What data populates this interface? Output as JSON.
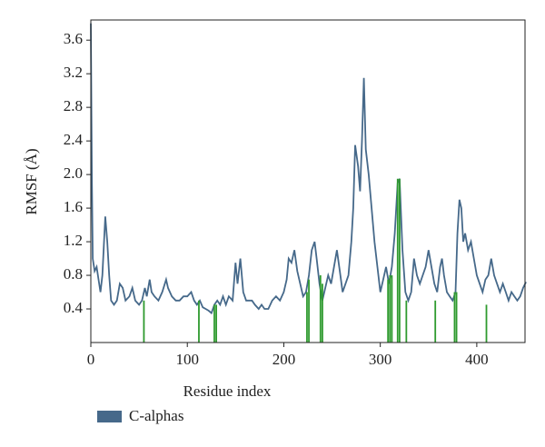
{
  "chart_data": {
    "type": "line",
    "xlabel": "Residue index",
    "ylabel": "RMSF (Å)",
    "xlim": [
      0,
      450
    ],
    "ylim": [
      0,
      3.84
    ],
    "xticks": [
      0,
      100,
      200,
      300,
      400
    ],
    "yticks": [
      0.4,
      0.8,
      1.2,
      1.6,
      {
        "value": 2,
        "label": "2.0"
      },
      2.4,
      2.8,
      3.2,
      3.6
    ],
    "series": [
      {
        "name": "C-alphas",
        "color": "#46698a",
        "x": [
          0,
          1,
          2,
          4,
          6,
          8,
          10,
          12,
          15,
          17,
          19,
          21,
          24,
          27,
          30,
          33,
          36,
          40,
          43,
          46,
          50,
          53,
          56,
          58,
          61,
          63,
          66,
          70,
          74,
          78,
          80,
          84,
          88,
          92,
          96,
          100,
          104,
          107,
          110,
          113,
          116,
          119,
          122,
          125,
          128,
          131,
          134,
          137,
          140,
          143,
          147,
          150,
          152,
          155,
          158,
          161,
          164,
          167,
          170,
          174,
          177,
          180,
          184,
          188,
          192,
          196,
          200,
          203,
          205,
          208,
          211,
          214,
          217,
          220,
          223,
          226,
          229,
          232,
          234,
          237,
          240,
          243,
          246,
          249,
          252,
          255,
          258,
          261,
          264,
          267,
          270,
          272,
          274,
          277,
          279,
          281,
          283,
          285,
          288,
          291,
          294,
          297,
          300,
          303,
          306,
          309,
          312,
          315,
          318,
          320,
          323,
          326,
          329,
          332,
          335,
          338,
          341,
          344,
          347,
          350,
          353,
          356,
          359,
          362,
          364,
          366,
          369,
          372,
          375,
          378,
          380,
          382,
          384,
          386,
          388,
          391,
          394,
          397,
          400,
          403,
          406,
          409,
          412,
          415,
          418,
          421,
          424,
          427,
          430,
          433,
          436,
          439,
          442,
          445,
          448,
          451
        ],
        "values": [
          3.8,
          2.0,
          1.0,
          0.85,
          0.9,
          0.75,
          0.6,
          0.8,
          1.5,
          1.2,
          0.8,
          0.5,
          0.45,
          0.5,
          0.7,
          0.65,
          0.5,
          0.55,
          0.65,
          0.5,
          0.45,
          0.5,
          0.65,
          0.55,
          0.75,
          0.6,
          0.55,
          0.5,
          0.6,
          0.75,
          0.65,
          0.55,
          0.5,
          0.5,
          0.55,
          0.55,
          0.6,
          0.5,
          0.45,
          0.5,
          0.42,
          0.4,
          0.38,
          0.35,
          0.45,
          0.5,
          0.45,
          0.55,
          0.45,
          0.55,
          0.5,
          0.95,
          0.7,
          1.0,
          0.6,
          0.5,
          0.5,
          0.5,
          0.45,
          0.4,
          0.45,
          0.4,
          0.4,
          0.5,
          0.55,
          0.5,
          0.6,
          0.75,
          1.0,
          0.95,
          1.1,
          0.85,
          0.7,
          0.55,
          0.6,
          0.8,
          1.1,
          1.2,
          1.0,
          0.7,
          0.5,
          0.65,
          0.8,
          0.7,
          0.9,
          1.1,
          0.85,
          0.6,
          0.7,
          0.8,
          1.2,
          1.6,
          2.35,
          2.1,
          1.8,
          2.4,
          3.15,
          2.3,
          2.0,
          1.6,
          1.2,
          0.9,
          0.6,
          0.75,
          0.9,
          0.7,
          0.9,
          1.3,
          1.9,
          1.95,
          1.1,
          0.6,
          0.5,
          0.6,
          1.0,
          0.8,
          0.7,
          0.8,
          0.9,
          1.1,
          0.9,
          0.7,
          0.6,
          0.9,
          1.0,
          0.8,
          0.6,
          0.55,
          0.5,
          0.6,
          1.3,
          1.7,
          1.6,
          1.2,
          1.3,
          1.1,
          1.2,
          1.0,
          0.8,
          0.7,
          0.6,
          0.75,
          0.8,
          1.0,
          0.8,
          0.7,
          0.6,
          0.7,
          0.6,
          0.5,
          0.6,
          0.55,
          0.5,
          0.55,
          0.65,
          0.72
        ]
      }
    ],
    "contacts": {
      "color": "#2e9a2e",
      "x": [
        55,
        112,
        128,
        130,
        224,
        226,
        238,
        240,
        308,
        310,
        312,
        318,
        320,
        327,
        357,
        377,
        379,
        410
      ],
      "values": [
        0.5,
        0.5,
        0.45,
        0.45,
        0.6,
        0.75,
        0.8,
        0.7,
        0.75,
        0.8,
        0.8,
        1.95,
        1.95,
        0.5,
        0.5,
        0.6,
        0.6,
        0.45
      ]
    }
  }
}
